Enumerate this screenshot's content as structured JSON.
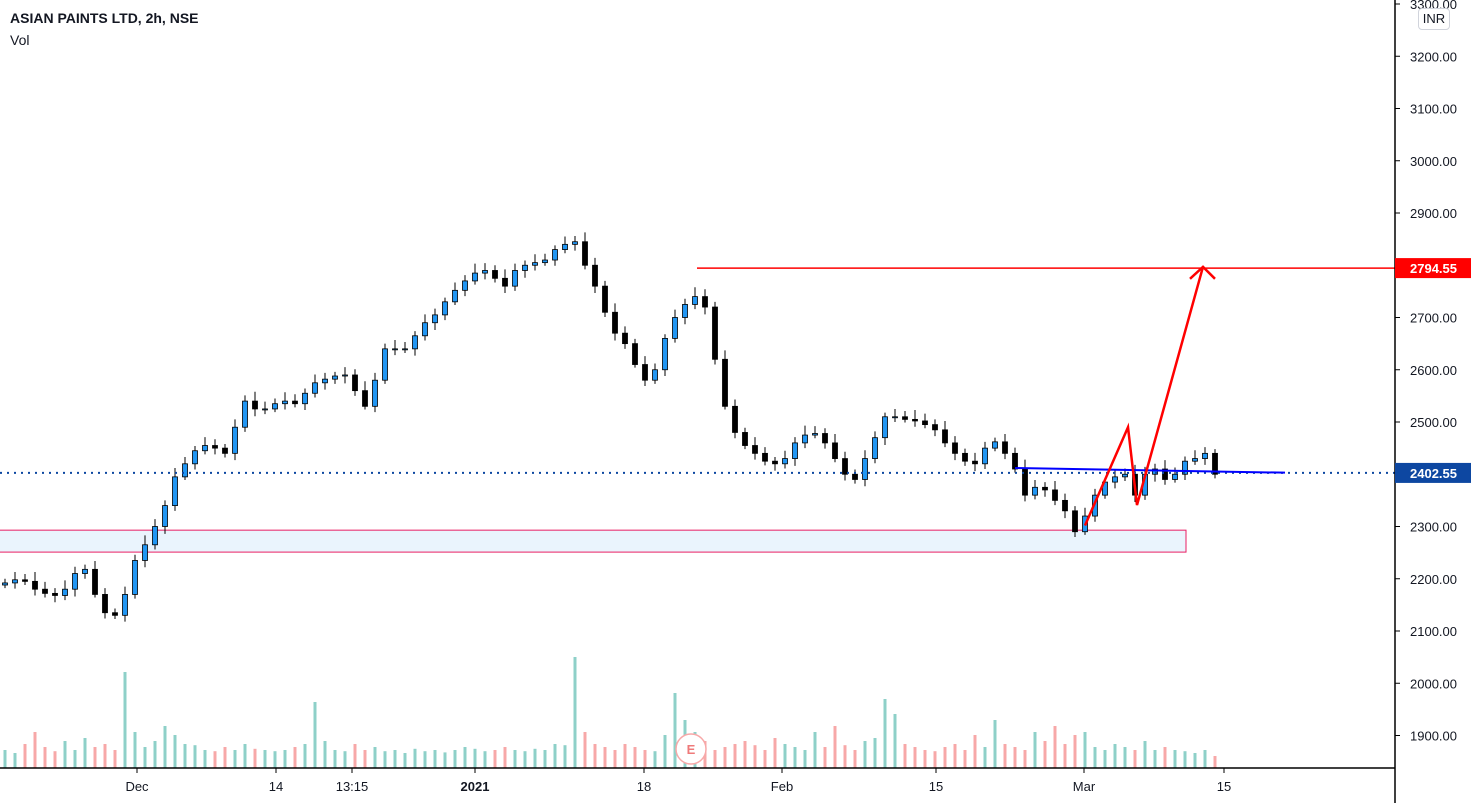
{
  "header": {
    "title": "ASIAN PAINTS LTD, 2h, NSE",
    "indicator": "Vol",
    "currency": "INR"
  },
  "chart_data": {
    "type": "candlestick",
    "symbol": "ASIAN PAINTS LTD",
    "interval": "2h",
    "exchange": "NSE",
    "y_ticks": [
      "3300.00",
      "3200.00",
      "3100.00",
      "3000.00",
      "2900.00",
      "2700.00",
      "2600.00",
      "2500.00",
      "2300.00",
      "2200.00",
      "2100.00",
      "2000.00",
      "1900.00"
    ],
    "y_tick_values": [
      3300,
      3200,
      3100,
      3000,
      2900,
      2700,
      2600,
      2500,
      2300,
      2200,
      2100,
      2000,
      1900
    ],
    "ylim": [
      1840,
      3310
    ],
    "x_ticks": [
      {
        "label": "Dec",
        "bold": false
      },
      {
        "label": "14",
        "bold": false
      },
      {
        "label": "13:15",
        "bold": false
      },
      {
        "label": "2021",
        "bold": true
      },
      {
        "label": "18",
        "bold": false
      },
      {
        "label": "Feb",
        "bold": false
      },
      {
        "label": "15",
        "bold": false
      },
      {
        "label": "Mar",
        "bold": false
      },
      {
        "label": "15",
        "bold": false
      }
    ],
    "closes": [
      2192,
      2198,
      2195,
      2180,
      2172,
      2168,
      2180,
      2210,
      2218,
      2170,
      2135,
      2130,
      2170,
      2235,
      2265,
      2300,
      2340,
      2395,
      2420,
      2445,
      2455,
      2450,
      2440,
      2490,
      2540,
      2525,
      2525,
      2535,
      2540,
      2535,
      2555,
      2575,
      2582,
      2588,
      2590,
      2560,
      2530,
      2580,
      2640,
      2640,
      2640,
      2665,
      2690,
      2705,
      2730,
      2752,
      2770,
      2785,
      2790,
      2775,
      2760,
      2790,
      2800,
      2805,
      2810,
      2830,
      2840,
      2845,
      2800,
      2760,
      2710,
      2670,
      2650,
      2610,
      2580,
      2600,
      2660,
      2700,
      2725,
      2740,
      2720,
      2620,
      2530,
      2480,
      2455,
      2440,
      2425,
      2420,
      2430,
      2460,
      2475,
      2478,
      2460,
      2430,
      2400,
      2390,
      2430,
      2470,
      2510,
      2510,
      2505,
      2502,
      2495,
      2485,
      2460,
      2440,
      2425,
      2420,
      2450,
      2462,
      2440,
      2410,
      2360,
      2375,
      2370,
      2350,
      2330,
      2290,
      2320,
      2360,
      2385,
      2395,
      2400,
      2360,
      2400,
      2410,
      2390,
      2400,
      2425,
      2430,
      2440,
      2400
    ],
    "volumes": [
      30,
      25,
      40,
      60,
      35,
      28,
      45,
      30,
      50,
      35,
      40,
      30,
      160,
      60,
      35,
      45,
      70,
      55,
      40,
      38,
      30,
      28,
      35,
      30,
      40,
      32,
      30,
      28,
      30,
      35,
      40,
      110,
      45,
      30,
      28,
      40,
      30,
      35,
      28,
      30,
      25,
      32,
      28,
      30,
      26,
      30,
      35,
      32,
      28,
      30,
      35,
      30,
      28,
      32,
      30,
      40,
      38,
      185,
      60,
      40,
      35,
      30,
      40,
      35,
      30,
      28,
      55,
      125,
      80,
      60,
      45,
      30,
      35,
      40,
      45,
      38,
      30,
      50,
      40,
      35,
      30,
      60,
      35,
      70,
      38,
      30,
      45,
      50,
      115,
      90,
      40,
      35,
      30,
      28,
      35,
      40,
      30,
      55,
      35,
      80,
      40,
      35,
      30,
      60,
      45,
      70,
      40,
      55,
      60,
      35,
      30,
      40,
      35,
      30,
      45,
      30,
      35,
      30,
      28,
      25,
      30,
      20
    ],
    "colors": {
      "up_body": "#2196f3",
      "down_body": "#000000",
      "wick": "#000000",
      "vol_up": "#8ed0c8",
      "vol_down": "#f7a8a8",
      "red": "#ff0000",
      "blue_line": "#0000ff",
      "last_price_bg": "#0d47a1"
    },
    "horizontal_line": {
      "price": 2794.55,
      "label": "2794.55",
      "color": "#ff0000"
    },
    "last_price": {
      "price": 2402.55,
      "label": "2402.55"
    },
    "trendline": {
      "from_price": 2412,
      "to_price": 2403,
      "color": "#0000ff"
    },
    "zigzag_prices": [
      2302,
      2490,
      2341,
      2797
    ],
    "zone": {
      "top": 2293,
      "bottom": 2251
    },
    "event_marker": "E"
  }
}
